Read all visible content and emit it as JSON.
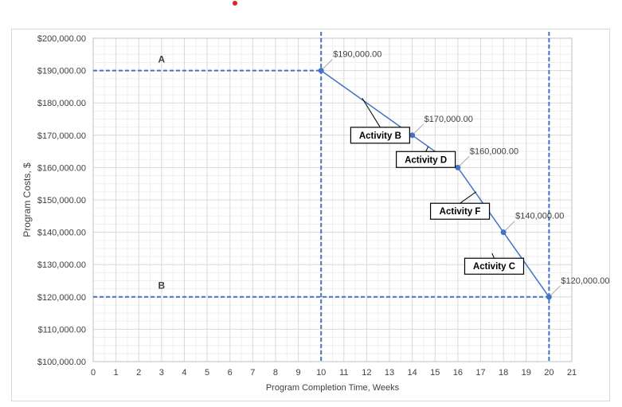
{
  "chart_data": {
    "type": "line",
    "xlabel": "Program Completion Time, Weeks",
    "ylabel": "Program Costs, $",
    "xlim": [
      0,
      21
    ],
    "ylim": [
      100000,
      200000
    ],
    "x_ticks": [
      0,
      1,
      2,
      3,
      4,
      5,
      6,
      7,
      8,
      9,
      10,
      11,
      12,
      13,
      14,
      15,
      16,
      17,
      18,
      19,
      20,
      21
    ],
    "y_ticks": [
      100000,
      110000,
      120000,
      130000,
      140000,
      150000,
      160000,
      170000,
      180000,
      190000,
      200000
    ],
    "y_tick_labels": [
      "$100,000.00",
      "$110,000.00",
      "$120,000.00",
      "$130,000.00",
      "$140,000.00",
      "$150,000.00",
      "$160,000.00",
      "$170,000.00",
      "$180,000.00",
      "$190,000.00",
      "$200,000.00"
    ],
    "grid": true,
    "series": [
      {
        "x": [
          10,
          14,
          16,
          18,
          20
        ],
        "y": [
          190000,
          170000,
          160000,
          140000,
          120000
        ],
        "point_labels": [
          "$190,000.00",
          "$170,000.00",
          "$160,000.00",
          "$140,000.00",
          "$120,000.00"
        ]
      }
    ],
    "reference_lines": [
      {
        "label": "A",
        "orientation": "horizontal",
        "y": 190000,
        "x_from": 0,
        "x_to": 10,
        "style": "dashed"
      },
      {
        "label": "B",
        "orientation": "horizontal",
        "y": 120000,
        "x_from": 0,
        "x_to": 20,
        "style": "dashed"
      },
      {
        "orientation": "vertical",
        "x": 10,
        "style": "dashed"
      },
      {
        "orientation": "vertical",
        "x": 20,
        "style": "dashed"
      }
    ],
    "reference_labels": [
      {
        "text": "A",
        "x": 3,
        "y": 192500
      },
      {
        "text": "B",
        "x": 3,
        "y": 122500
      }
    ],
    "callouts": [
      {
        "text": "Activity B",
        "x": 11.3,
        "y": 170000,
        "line_to": [
          11.8,
          181500
        ]
      },
      {
        "text": "Activity D",
        "x": 13.3,
        "y": 162500,
        "line_to": [
          14.7,
          166500
        ]
      },
      {
        "text": "Activity F",
        "x": 14.8,
        "y": 146500,
        "line_to": [
          16.8,
          152500
        ]
      },
      {
        "text": "Activity C",
        "x": 16.3,
        "y": 129500,
        "line_to": [
          17.5,
          133500
        ]
      }
    ],
    "colors": {
      "series": "#4472c4",
      "grid": "#d9d9d9",
      "text": "#404040"
    }
  }
}
